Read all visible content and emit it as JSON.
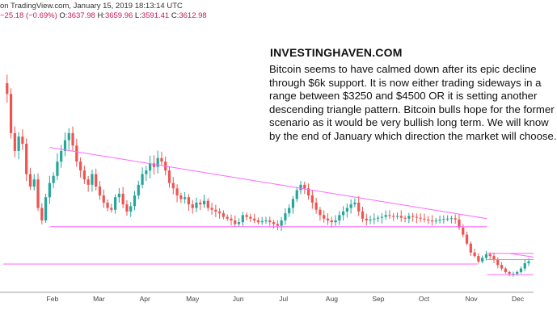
{
  "header": {
    "line1": "on TradingView.com, January 15, 2019 18:13:14 UTC",
    "change": "−25.18 (−0.69%)",
    "open_label": "O:",
    "open": "3637.98",
    "high_label": "H:",
    "high": "3659.96",
    "low_label": "L:",
    "low": "3591.41",
    "close_label": "C:",
    "close": "3612.98"
  },
  "annotation": {
    "brand": "INVESTINGHAVEN.COM",
    "lines": [
      "Bitcoin seems to have calmed down after its epic decline",
      "through $6k support. It is now either trading sideways in a",
      "range between $3250 and $4500 OR it is setting another",
      "descending triangle pattern. Bitcoin bulls hope for the former",
      "scenario as it would be very bullish long term. We will know",
      "by the end of January which direction the market will choose."
    ]
  },
  "chart_data": {
    "type": "candlestick",
    "x_labels": [
      "Feb",
      "Mar",
      "Apr",
      "May",
      "Jun",
      "Jul",
      "Aug",
      "Sep",
      "Oct",
      "Nov",
      "Dec"
    ],
    "up_color": "#26a69a",
    "down_color": "#ef5350",
    "line_color": "#ff66ff",
    "grid": false,
    "close_series": [
      14000,
      13400,
      11200,
      10200,
      11000,
      10600,
      8900,
      8200,
      8600,
      7000,
      6300,
      7600,
      8400,
      8800,
      9600,
      10200,
      10800,
      11200,
      10500,
      9600,
      9100,
      8600,
      8300,
      8900,
      8200,
      7700,
      7300,
      7000,
      6900,
      7600,
      7800,
      7200,
      6800,
      7100,
      7700,
      8300,
      8900,
      9100,
      9500,
      9300,
      9800,
      9600,
      9100,
      8400,
      8100,
      7700,
      7500,
      7600,
      7200,
      7000,
      7300,
      7200,
      7400,
      7000,
      6900,
      6800,
      6700,
      6500,
      6400,
      6300,
      6100,
      6200,
      6600,
      6500,
      6400,
      6300,
      6200,
      6250,
      6300,
      6200,
      6100,
      6000,
      6300,
      6700,
      7000,
      7500,
      8000,
      8300,
      8100,
      7700,
      7300,
      6900,
      6600,
      6400,
      6300,
      6200,
      6300,
      6600,
      6800,
      7000,
      7200,
      7300,
      6800,
      6400,
      6300,
      6350,
      6400,
      6450,
      6500,
      6600,
      6550,
      6500,
      6550,
      6450,
      6400,
      6550,
      6500,
      6450,
      6400,
      6350,
      6300,
      6250,
      6300,
      6350,
      6380,
      6400,
      6420,
      6350,
      5900,
      5500,
      5000,
      4500,
      4300,
      4000,
      4200,
      4400,
      4300,
      4100,
      3800,
      3600,
      3400,
      3300,
      3300,
      3400,
      3600,
      3900,
      4000
    ],
    "lines": [
      {
        "name": "",
        "from": [
          1.0,
          10400
        ],
        "to": [
          10.4,
          6400
        ]
      },
      {
        "name": "",
        "from": [
          1.0,
          5950
        ],
        "to": [
          10.4,
          5950
        ]
      },
      {
        "name": "",
        "from": [
          10.4,
          4450
        ],
        "to": [
          11.4,
          4450
        ]
      },
      {
        "name": "",
        "from": [
          10.4,
          4100
        ],
        "to": [
          11.4,
          4100
        ]
      },
      {
        "name": "",
        "from": [
          0.0,
          3850
        ],
        "to": [
          10.2,
          3850
        ]
      },
      {
        "name": "",
        "from": [
          10.4,
          3250
        ],
        "to": [
          11.4,
          3250
        ]
      },
      {
        "name": "",
        "from": [
          10.9,
          4440
        ],
        "to": [
          11.4,
          4240
        ]
      }
    ]
  }
}
